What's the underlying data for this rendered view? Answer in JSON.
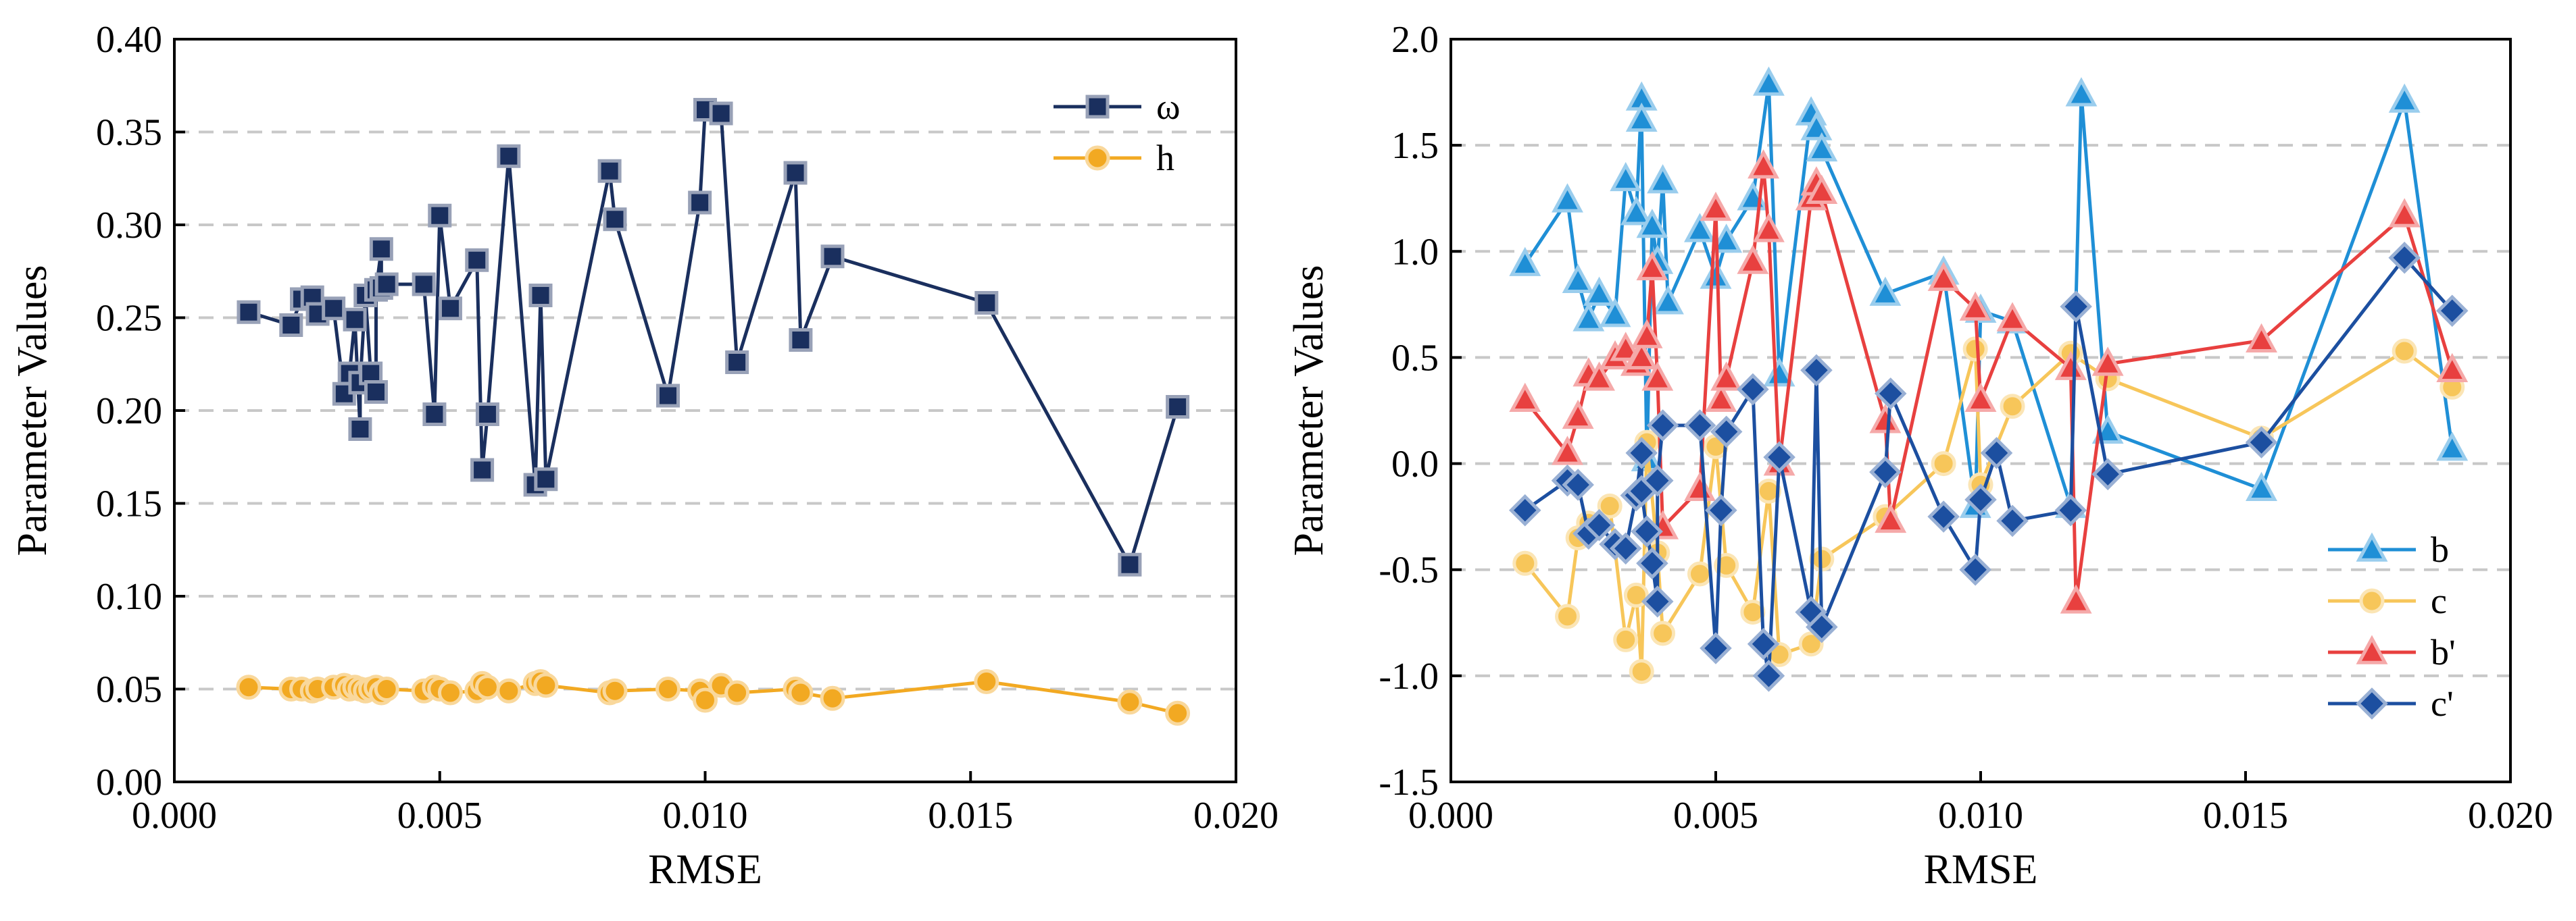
{
  "chart_data": [
    {
      "type": "line",
      "title": "",
      "xlabel": "RMSE",
      "ylabel": "Parameter Values",
      "xlim": [
        0.0,
        0.02
      ],
      "ylim": [
        0.0,
        0.4
      ],
      "xticks": [
        "0.000",
        "0.005",
        "0.010",
        "0.015",
        "0.020"
      ],
      "yticks": [
        "0.00",
        "0.05",
        "0.10",
        "0.15",
        "0.20",
        "0.25",
        "0.30",
        "0.35",
        "0.40"
      ],
      "grid": "horizontal dashed",
      "legend_position": "top-right",
      "series": [
        {
          "name": "ω",
          "color": "#1a2f5e",
          "marker": "square",
          "x": [
            0.0014,
            0.0022,
            0.0024,
            0.0026,
            0.0027,
            0.003,
            0.0032,
            0.0033,
            0.0034,
            0.0035,
            0.0035,
            0.0036,
            0.0037,
            0.0038,
            0.0038,
            0.0039,
            0.0039,
            0.004,
            0.0047,
            0.0049,
            0.005,
            0.0052,
            0.0057,
            0.0058,
            0.0059,
            0.0063,
            0.0068,
            0.0069,
            0.007,
            0.0082,
            0.0083,
            0.0093,
            0.0099,
            0.01,
            0.0103,
            0.0106,
            0.0117,
            0.0118,
            0.0124,
            0.0153,
            0.018,
            0.0189
          ],
          "y": [
            0.253,
            0.246,
            0.26,
            0.261,
            0.252,
            0.255,
            0.209,
            0.22,
            0.249,
            0.19,
            0.215,
            0.262,
            0.22,
            0.21,
            0.265,
            0.287,
            0.266,
            0.268,
            0.268,
            0.198,
            0.305,
            0.255,
            0.281,
            0.168,
            0.198,
            0.337,
            0.16,
            0.262,
            0.163,
            0.329,
            0.303,
            0.208,
            0.312,
            0.362,
            0.36,
            0.226,
            0.328,
            0.238,
            0.283,
            0.258,
            0.117,
            0.202
          ]
        },
        {
          "name": "h",
          "color": "#f2a922",
          "marker": "circle",
          "x": [
            0.0014,
            0.0022,
            0.0024,
            0.0026,
            0.0027,
            0.003,
            0.0032,
            0.0033,
            0.0034,
            0.0035,
            0.0036,
            0.0037,
            0.0038,
            0.0039,
            0.004,
            0.0047,
            0.0049,
            0.005,
            0.0052,
            0.0057,
            0.0058,
            0.0059,
            0.0063,
            0.0068,
            0.0069,
            0.007,
            0.0082,
            0.0083,
            0.0093,
            0.0099,
            0.01,
            0.0103,
            0.0106,
            0.0117,
            0.0118,
            0.0124,
            0.0153,
            0.018,
            0.0189
          ],
          "y": [
            0.051,
            0.05,
            0.05,
            0.049,
            0.05,
            0.051,
            0.052,
            0.05,
            0.051,
            0.05,
            0.049,
            0.05,
            0.051,
            0.048,
            0.05,
            0.049,
            0.051,
            0.05,
            0.048,
            0.049,
            0.053,
            0.051,
            0.049,
            0.053,
            0.054,
            0.052,
            0.048,
            0.049,
            0.05,
            0.049,
            0.044,
            0.052,
            0.048,
            0.05,
            0.048,
            0.045,
            0.054,
            0.043,
            0.037
          ]
        }
      ]
    },
    {
      "type": "line",
      "title": "",
      "xlabel": "RMSE",
      "ylabel": "Parameter Values",
      "xlim": [
        0.0,
        0.02
      ],
      "ylim": [
        -1.5,
        2.0
      ],
      "xticks": [
        "0.000",
        "0.005",
        "0.010",
        "0.015",
        "0.020"
      ],
      "yticks": [
        "-1.5",
        "-1.0",
        "-0.5",
        "0.0",
        "0.5",
        "1.0",
        "1.5",
        "2.0"
      ],
      "grid": "horizontal dashed",
      "legend_position": "bottom-right",
      "series": [
        {
          "name": "b",
          "color": "#1f8fd6",
          "marker": "triangle",
          "x": [
            0.0014,
            0.0022,
            0.0024,
            0.0026,
            0.0028,
            0.0031,
            0.0033,
            0.0035,
            0.0036,
            0.0036,
            0.0037,
            0.0038,
            0.0039,
            0.004,
            0.0041,
            0.0047,
            0.005,
            0.0052,
            0.0057,
            0.006,
            0.0062,
            0.0068,
            0.0069,
            0.007,
            0.0082,
            0.0093,
            0.0099,
            0.01,
            0.0106,
            0.0117,
            0.0119,
            0.0124,
            0.0153,
            0.018,
            0.0189
          ],
          "y": [
            0.94,
            1.24,
            0.86,
            0.68,
            0.8,
            0.7,
            1.34,
            1.18,
            1.72,
            1.62,
            0.02,
            1.12,
            0.95,
            1.33,
            0.76,
            1.1,
            0.88,
            1.05,
            1.25,
            1.79,
            0.42,
            1.65,
            1.58,
            1.48,
            0.8,
            0.9,
            -0.2,
            0.72,
            0.67,
            -0.2,
            1.74,
            0.15,
            -0.12,
            1.71,
            0.07
          ]
        },
        {
          "name": "c",
          "color": "#f7c65a",
          "marker": "circle",
          "x": [
            0.0014,
            0.0022,
            0.0024,
            0.0026,
            0.003,
            0.0033,
            0.0035,
            0.0036,
            0.0037,
            0.0039,
            0.004,
            0.0047,
            0.005,
            0.0052,
            0.0057,
            0.006,
            0.0062,
            0.0068,
            0.007,
            0.0082,
            0.0093,
            0.0099,
            0.01,
            0.0106,
            0.0117,
            0.0124,
            0.0153,
            0.018,
            0.0189
          ],
          "y": [
            -0.47,
            -0.72,
            -0.35,
            -0.28,
            -0.2,
            -0.83,
            -0.62,
            -0.98,
            0.1,
            -0.42,
            -0.8,
            -0.52,
            0.08,
            -0.48,
            -0.7,
            -0.13,
            -0.9,
            -0.85,
            -0.45,
            -0.25,
            0.0,
            0.54,
            -0.1,
            0.27,
            0.52,
            0.4,
            0.12,
            0.53,
            0.36
          ]
        },
        {
          "name": "b'",
          "color": "#e8403f",
          "marker": "triangle",
          "x": [
            0.0014,
            0.0022,
            0.0024,
            0.0026,
            0.0028,
            0.0031,
            0.0033,
            0.0035,
            0.0036,
            0.0037,
            0.0038,
            0.0039,
            0.004,
            0.0047,
            0.005,
            0.0051,
            0.0052,
            0.0057,
            0.0059,
            0.006,
            0.0062,
            0.0068,
            0.0069,
            0.007,
            0.0082,
            0.0083,
            0.0093,
            0.0099,
            0.01,
            0.0106,
            0.0117,
            0.0118,
            0.0124,
            0.0153,
            0.018,
            0.0189
          ],
          "y": [
            0.3,
            0.05,
            0.22,
            0.42,
            0.4,
            0.5,
            0.54,
            0.47,
            0.5,
            0.6,
            0.92,
            0.4,
            -0.3,
            -0.12,
            1.2,
            0.3,
            0.4,
            0.95,
            1.4,
            1.1,
            0.0,
            1.25,
            1.32,
            1.28,
            0.2,
            -0.27,
            0.87,
            0.73,
            0.3,
            0.68,
            0.45,
            -0.65,
            0.47,
            0.58,
            1.17,
            0.44
          ]
        },
        {
          "name": "c'",
          "color": "#1c4fa0",
          "marker": "diamond",
          "x": [
            0.0014,
            0.0022,
            0.0024,
            0.0026,
            0.0028,
            0.0031,
            0.0033,
            0.0035,
            0.0036,
            0.0036,
            0.0037,
            0.0038,
            0.0039,
            0.0039,
            0.004,
            0.0047,
            0.005,
            0.0051,
            0.0052,
            0.0057,
            0.0059,
            0.006,
            0.0062,
            0.0068,
            0.0069,
            0.007,
            0.0082,
            0.0083,
            0.0093,
            0.0099,
            0.01,
            0.0103,
            0.0106,
            0.0117,
            0.0118,
            0.0124,
            0.0153,
            0.018,
            0.0189
          ],
          "y": [
            -0.22,
            -0.08,
            -0.1,
            -0.33,
            -0.29,
            -0.38,
            -0.4,
            -0.15,
            0.05,
            -0.13,
            -0.32,
            -0.47,
            -0.65,
            -0.08,
            0.18,
            0.18,
            -0.87,
            -0.22,
            0.15,
            0.35,
            -0.85,
            -1.0,
            0.03,
            -0.7,
            0.44,
            -0.77,
            -0.04,
            0.33,
            -0.25,
            -0.5,
            -0.17,
            0.05,
            -0.27,
            -0.22,
            0.74,
            -0.05,
            0.1,
            0.97,
            0.72
          ]
        }
      ]
    }
  ]
}
